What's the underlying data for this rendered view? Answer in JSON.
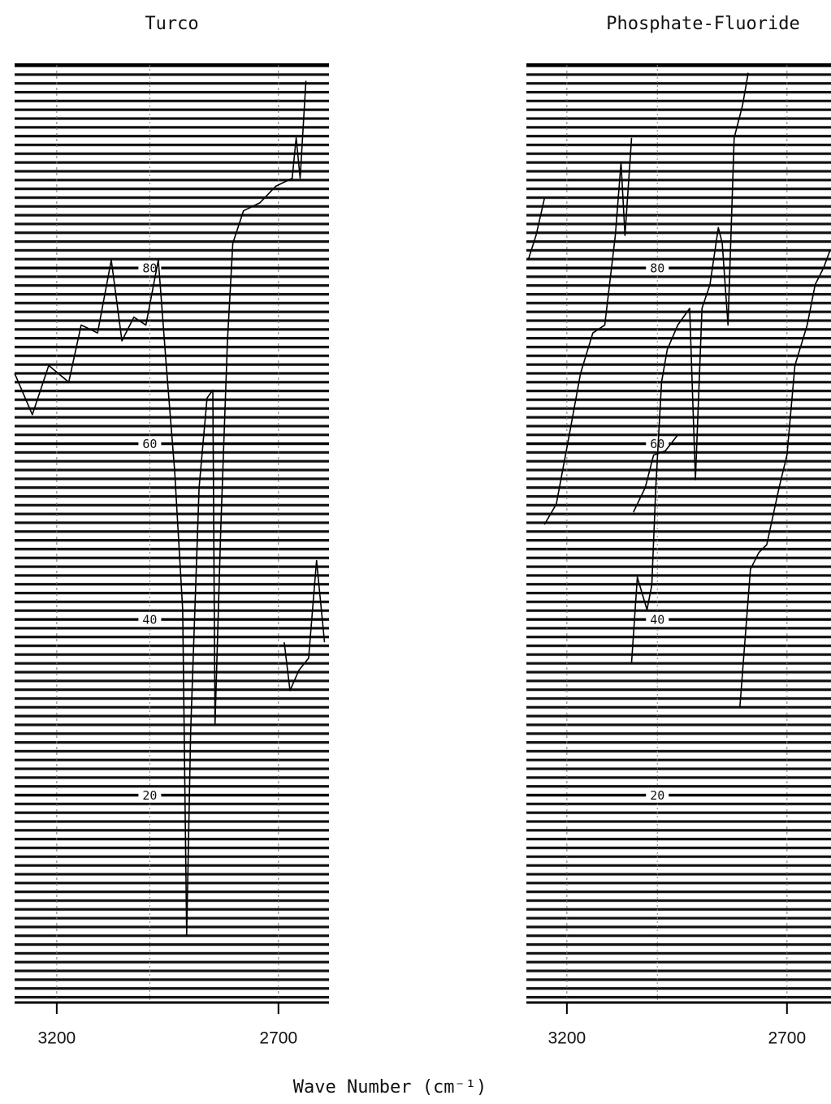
{
  "xlabel": "Wave Number (cm⁻¹)",
  "chart_data": [
    {
      "type": "line",
      "title": "Turco",
      "color": "#000000",
      "xlim": [
        3295,
        2586
      ],
      "xticks": [
        3200,
        2700
      ],
      "ylim": [
        -3.6,
        103.1
      ],
      "yticks": [
        20,
        40,
        60,
        80
      ],
      "x": [
        3295,
        3255,
        3218,
        3173,
        3145,
        3108,
        3077,
        3053,
        3026,
        2999,
        2971,
        2953,
        2934,
        2916,
        2907,
        2898,
        2879,
        2861,
        2848,
        2843,
        2830,
        2815,
        2803,
        2779,
        2742,
        2706,
        2669,
        2660,
        2651,
        2638,
        null,
        2687,
        2674,
        2654,
        2632,
        2614,
        2596
      ],
      "values": [
        68.0,
        63.3,
        68.9,
        67.0,
        73.5,
        72.6,
        80.9,
        71.7,
        74.4,
        73.5,
        80.9,
        68.9,
        56.9,
        41.1,
        4.1,
        27.2,
        55.0,
        65.2,
        66.1,
        28.1,
        50.4,
        71.7,
        82.8,
        86.5,
        87.4,
        89.3,
        90.2,
        94.8,
        90.2,
        101.3,
        null,
        37.4,
        31.9,
        34.2,
        35.6,
        46.7,
        37.4
      ]
    },
    {
      "type": "line",
      "title": "Phosphate-Fluoride",
      "color": "#000000",
      "xlim": [
        3292,
        2600
      ],
      "xticks": [
        3200,
        2700
      ],
      "ylim": [
        -3.6,
        103.1
      ],
      "yticks": [
        20,
        40,
        60,
        80
      ],
      "x": [
        3288,
        3270,
        3251,
        null,
        3251,
        3224,
        3196,
        3169,
        3141,
        3114,
        3090,
        3077,
        3068,
        3053,
        null,
        3053,
        3040,
        3018,
        3007,
        2998,
        2985,
        2972,
        2948,
        2921,
        2908,
        2893,
        2875,
        2856,
        2847,
        2834,
        2820,
        2801,
        2788,
        null,
        3049,
        3022,
        3003,
        2976,
        2948,
        null,
        2807,
        2783,
        2764,
        2746,
        2718,
        2700,
        2682,
        2654,
        2636,
        2617,
        2603
      ],
      "values": [
        80.9,
        83.7,
        87.9,
        null,
        50.8,
        53.1,
        60.6,
        68.0,
        72.6,
        73.5,
        83.7,
        92.0,
        83.7,
        94.8,
        null,
        35.1,
        44.8,
        41.1,
        43.9,
        55.0,
        67.0,
        70.7,
        73.5,
        75.4,
        55.9,
        75.4,
        78.1,
        84.6,
        82.8,
        73.5,
        94.8,
        98.5,
        102.2,
        null,
        52.2,
        55.0,
        58.7,
        59.2,
        61.0,
        null,
        30.0,
        45.7,
        47.6,
        48.5,
        55.0,
        58.7,
        68.9,
        73.5,
        78.1,
        80.0,
        81.9
      ]
    }
  ]
}
